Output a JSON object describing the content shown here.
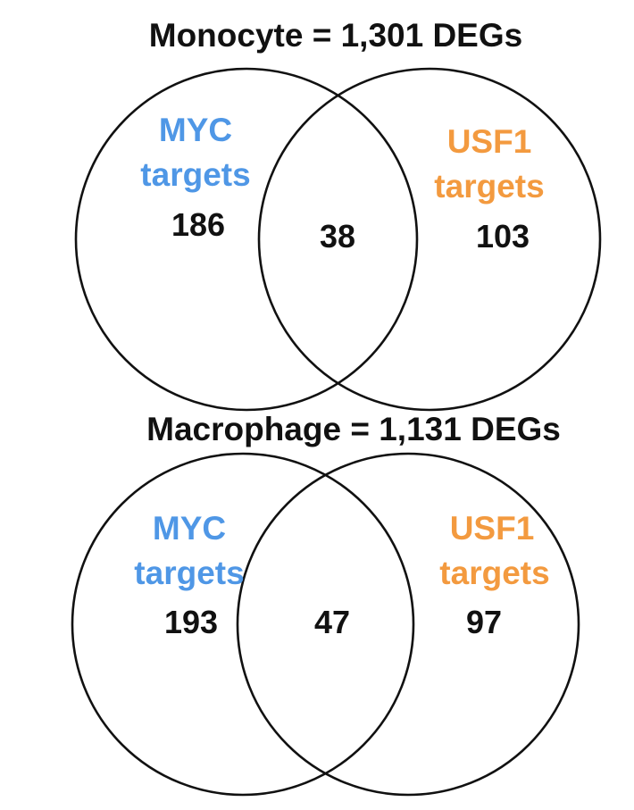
{
  "colors": {
    "myc": "#4f97e6",
    "usf1": "#f39a3f",
    "outline": "#111111"
  },
  "diagrams": [
    {
      "title": "Monocyte = 1,301 DEGs",
      "left_set": {
        "label_line1": "MYC",
        "label_line2": "targets",
        "count": "186"
      },
      "overlap_count": "38",
      "right_set": {
        "label_line1": "USF1",
        "label_line2": "targets",
        "count": "103"
      }
    },
    {
      "title": "Macrophage = 1,131 DEGs",
      "left_set": {
        "label_line1": "MYC",
        "label_line2": "targets",
        "count": "193"
      },
      "overlap_count": "47",
      "right_set": {
        "label_line1": "USF1",
        "label_line2": "targets",
        "count": "97"
      }
    }
  ]
}
